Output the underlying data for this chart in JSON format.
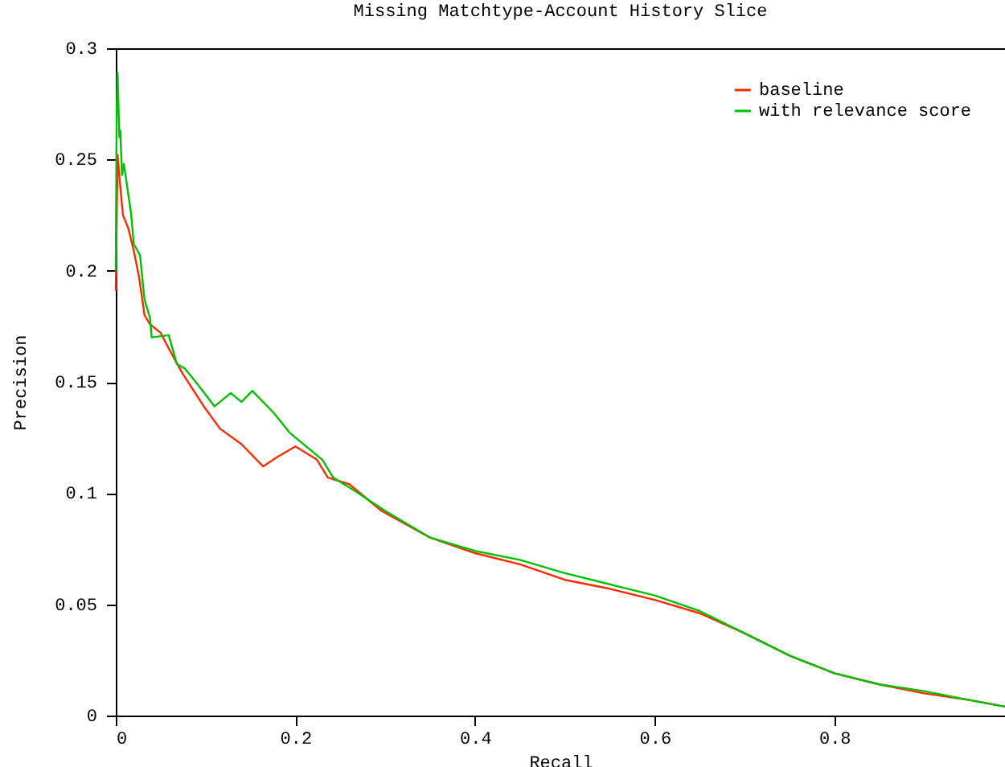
{
  "chart_data": {
    "type": "line",
    "title": "Missing Matchtype-Account History Slice",
    "xlabel": "Recall",
    "ylabel": "Precision",
    "xlim": [
      0,
      0.99
    ],
    "xticks": [
      {
        "value": 0,
        "label": "0"
      },
      0.2,
      0.4,
      0.6,
      0.8
    ],
    "ylim": [
      0,
      0.3
    ],
    "yticks": [
      {
        "value": 0,
        "label": "0"
      },
      0.05,
      0.1,
      0.15,
      0.2,
      0.25,
      0.3
    ],
    "grid": false,
    "legend": "top right",
    "marker": "none",
    "line_style": "solid",
    "series": [
      {
        "name": "baseline",
        "color": "#ff2a00",
        "x": [
          0,
          0.002,
          0.005,
          0.008,
          0.014,
          0.02,
          0.026,
          0.032,
          0.038,
          0.05,
          0.059,
          0.074,
          0.098,
          0.116,
          0.14,
          0.164,
          0.179,
          0.2,
          0.224,
          0.236,
          0.26,
          0.296,
          0.35,
          0.4,
          0.45,
          0.5,
          0.55,
          0.6,
          0.65,
          0.7,
          0.75,
          0.8,
          0.85,
          0.9,
          0.95,
          0.99
        ],
        "values": [
          0.191,
          0.252,
          0.238,
          0.225,
          0.219,
          0.209,
          0.197,
          0.18,
          0.176,
          0.172,
          0.165,
          0.154,
          0.139,
          0.129,
          0.122,
          0.112,
          0.116,
          0.121,
          0.115,
          0.107,
          0.104,
          0.092,
          0.08,
          0.073,
          0.068,
          0.061,
          0.057,
          0.052,
          0.046,
          0.037,
          0.027,
          0.019,
          0.014,
          0.01,
          0.007,
          0.004
        ]
      },
      {
        "name": "with relevance score",
        "color": "#00c000",
        "x": [
          0,
          0.001,
          0.002,
          0.004,
          0.005,
          0.007,
          0.009,
          0.017,
          0.02,
          0.027,
          0.032,
          0.038,
          0.04,
          0.059,
          0.068,
          0.077,
          0.089,
          0.11,
          0.128,
          0.14,
          0.152,
          0.176,
          0.194,
          0.23,
          0.242,
          0.266,
          0.3,
          0.35,
          0.4,
          0.45,
          0.5,
          0.55,
          0.6,
          0.65,
          0.7,
          0.75,
          0.8,
          0.85,
          0.9,
          0.95,
          0.99
        ],
        "values": [
          0.2,
          0.272,
          0.289,
          0.26,
          0.263,
          0.243,
          0.248,
          0.226,
          0.212,
          0.207,
          0.187,
          0.179,
          0.17,
          0.171,
          0.158,
          0.156,
          0.15,
          0.139,
          0.145,
          0.141,
          0.146,
          0.136,
          0.127,
          0.115,
          0.107,
          0.101,
          0.092,
          0.08,
          0.074,
          0.07,
          0.064,
          0.059,
          0.054,
          0.047,
          0.037,
          0.027,
          0.019,
          0.014,
          0.011,
          0.007,
          0.004
        ]
      }
    ]
  }
}
